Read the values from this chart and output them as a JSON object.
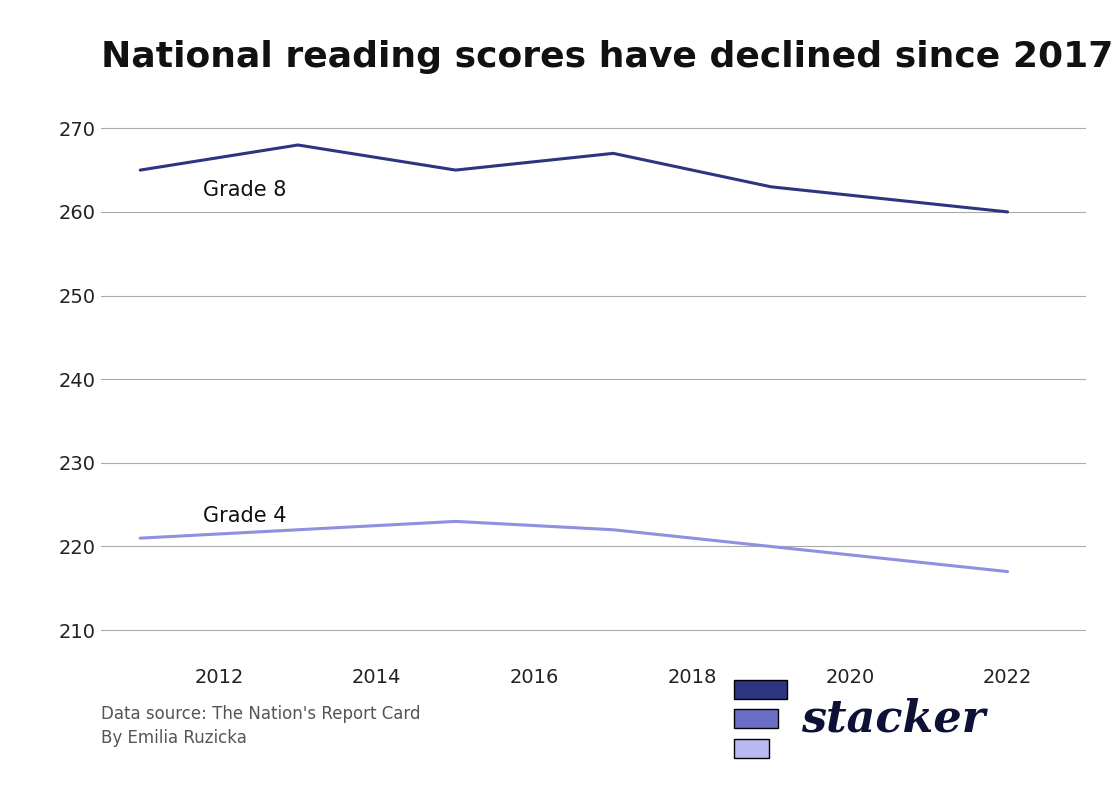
{
  "title": "National reading scores have declined since 2017",
  "title_fontsize": 26,
  "title_fontweight": "bold",
  "background_color": "#ffffff",
  "grade8": {
    "years": [
      2011,
      2013,
      2015,
      2017,
      2019,
      2022
    ],
    "scores": [
      265,
      268,
      265,
      267,
      263,
      260
    ],
    "color": "#2d3580",
    "label": "Grade 8",
    "linewidth": 2.2
  },
  "grade4": {
    "years": [
      2011,
      2013,
      2015,
      2017,
      2019,
      2022
    ],
    "scores": [
      221,
      222,
      223,
      222,
      220,
      217
    ],
    "color": "#9090e0",
    "label": "Grade 4",
    "linewidth": 2.2
  },
  "ylim": [
    206,
    274
  ],
  "yticks": [
    210,
    220,
    230,
    240,
    250,
    260,
    270
  ],
  "xticks": [
    2012,
    2014,
    2016,
    2018,
    2020,
    2022
  ],
  "xlim": [
    2010.5,
    2023.0
  ],
  "grid_color": "#aaaaaa",
  "label_color": "#111111",
  "label_fontsize": 15,
  "data_source": "Data source: The Nation's Report Card",
  "author": "By Emilia Ruzicka",
  "footer_fontsize": 12,
  "footer_color": "#555555",
  "stacker_text": "stacker",
  "stacker_text_color": "#0d1136",
  "stacker_logo_colors": [
    "#2d3580",
    "#6b6ec5",
    "#b8b9f0"
  ]
}
